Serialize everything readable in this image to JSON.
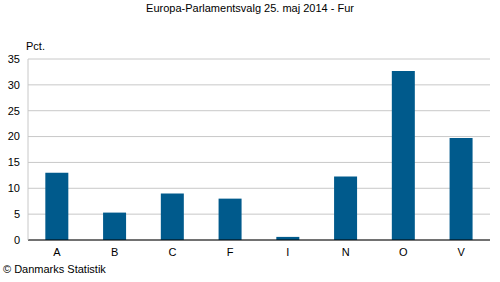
{
  "chart_data": {
    "type": "bar",
    "title": "Europa-Parlamentsvalg 25. maj 2014 - Fur",
    "y_label": "Pct.",
    "annotations": [
      "© Danmarks Statistik"
    ],
    "categories": [
      "A",
      "B",
      "C",
      "F",
      "I",
      "N",
      "O",
      "V"
    ],
    "values": [
      13.0,
      5.3,
      9.0,
      8.0,
      0.6,
      12.3,
      32.7,
      19.7
    ],
    "color": "#005a8c",
    "ylim": [
      0,
      35
    ],
    "yticks": [
      0,
      5,
      10,
      15,
      20,
      25,
      30,
      35
    ],
    "grid": true
  }
}
